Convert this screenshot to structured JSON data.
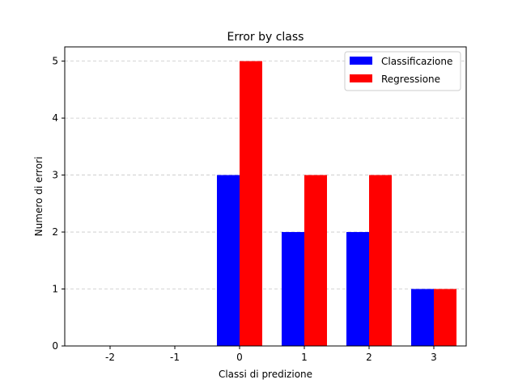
{
  "chart_data": {
    "type": "bar",
    "title": "Error by class",
    "xlabel": "Classi di predizione",
    "ylabel": "Numero di errori",
    "categories": [
      "-2",
      "-1",
      "0",
      "1",
      "2",
      "3"
    ],
    "series": [
      {
        "name": "Classificazione",
        "color": "#0000ff",
        "values": [
          0,
          0,
          3,
          2,
          2,
          1
        ]
      },
      {
        "name": "Regressione",
        "color": "#ff0000",
        "values": [
          0,
          0,
          5,
          3,
          3,
          1
        ]
      }
    ],
    "ylim": [
      0,
      5.25
    ],
    "yticks": [
      0,
      1,
      2,
      3,
      4,
      5
    ],
    "grid": "y-dashed",
    "legend_position": "top-right"
  }
}
